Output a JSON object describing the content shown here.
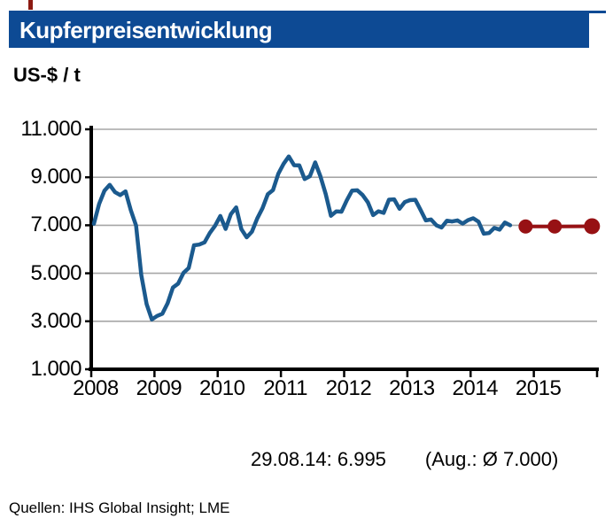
{
  "page": {
    "title": "Kupferpreisentwicklung",
    "unit_label": "US-$ / t",
    "annotation": {
      "spot": "29.08.14: 6.995",
      "average": "(Aug.: Ø 7.000)"
    },
    "source": "Quellen: IHS Global Insight; LME"
  },
  "colors": {
    "title_bar": "#0d4a94",
    "top_rule": "#0d4a94",
    "corner_mark": "#8c1a12",
    "line": "#1b5a8e",
    "forecast": "#971114",
    "grid": "#a6a6a6",
    "axis": "#000000"
  },
  "chart_data": {
    "type": "line",
    "title": "Kupferpreisentwicklung",
    "ylabel": "US-$ / t",
    "xlim": [
      2008,
      2016
    ],
    "ylim": [
      1000,
      11000
    ],
    "grid": true,
    "legend": "none",
    "y_ticks": [
      {
        "value": 11000,
        "label": "11.000"
      },
      {
        "value": 9000,
        "label": "9.000"
      },
      {
        "value": 7000,
        "label": "7.000"
      },
      {
        "value": 5000,
        "label": "5.000"
      },
      {
        "value": 3000,
        "label": "3.000"
      },
      {
        "value": 1000,
        "label": "1.000"
      }
    ],
    "x_ticks": [
      {
        "value": 2008,
        "label": "2008"
      },
      {
        "value": 2009,
        "label": "2009"
      },
      {
        "value": 2010,
        "label": "2010"
      },
      {
        "value": 2011,
        "label": "2011"
      },
      {
        "value": 2012,
        "label": "2012"
      },
      {
        "value": 2013,
        "label": "2013"
      },
      {
        "value": 2014,
        "label": "2014"
      },
      {
        "value": 2015,
        "label": "2015"
      }
    ],
    "series": [
      {
        "name": "historical",
        "style": "line",
        "color": "#1b5a8e",
        "frequency": "monthly",
        "start": "2008-01",
        "end": "2014-08",
        "values": [
          7061,
          7888,
          8439,
          8685,
          8382,
          8260,
          8414,
          7634,
          6990,
          4925,
          3717,
          3072,
          3221,
          3315,
          3750,
          4407,
          4569,
          5014,
          5216,
          6165,
          6196,
          6288,
          6676,
          6982,
          7386,
          6848,
          7463,
          7745,
          6838,
          6499,
          6735,
          7284,
          7709,
          8292,
          8470,
          9147,
          9556,
          9868,
          9503,
          9493,
          8927,
          9045,
          9619,
          9041,
          8300,
          7394,
          7581,
          7565,
          8040,
          8441,
          8457,
          8263,
          7956,
          7423,
          7584,
          7517,
          8067,
          8082,
          7686,
          7966,
          8047,
          8061,
          7645,
          7202,
          7240,
          7000,
          6906,
          7193,
          7159,
          7203,
          7071,
          7214,
          7291,
          7149,
          6650,
          6674,
          6891,
          6821,
          7113,
          7000
        ]
      },
      {
        "name": "forecast",
        "style": "line+markers",
        "color": "#971114",
        "points": [
          {
            "x": 2014.87,
            "y": 6950,
            "r": 8
          },
          {
            "x": 2015.33,
            "y": 6950,
            "r": 8
          },
          {
            "x": 2015.92,
            "y": 6960,
            "r": 9
          }
        ]
      }
    ],
    "annotations": [
      "29.08.14: 6.995",
      "(Aug.: Ø 7.000)"
    ]
  }
}
